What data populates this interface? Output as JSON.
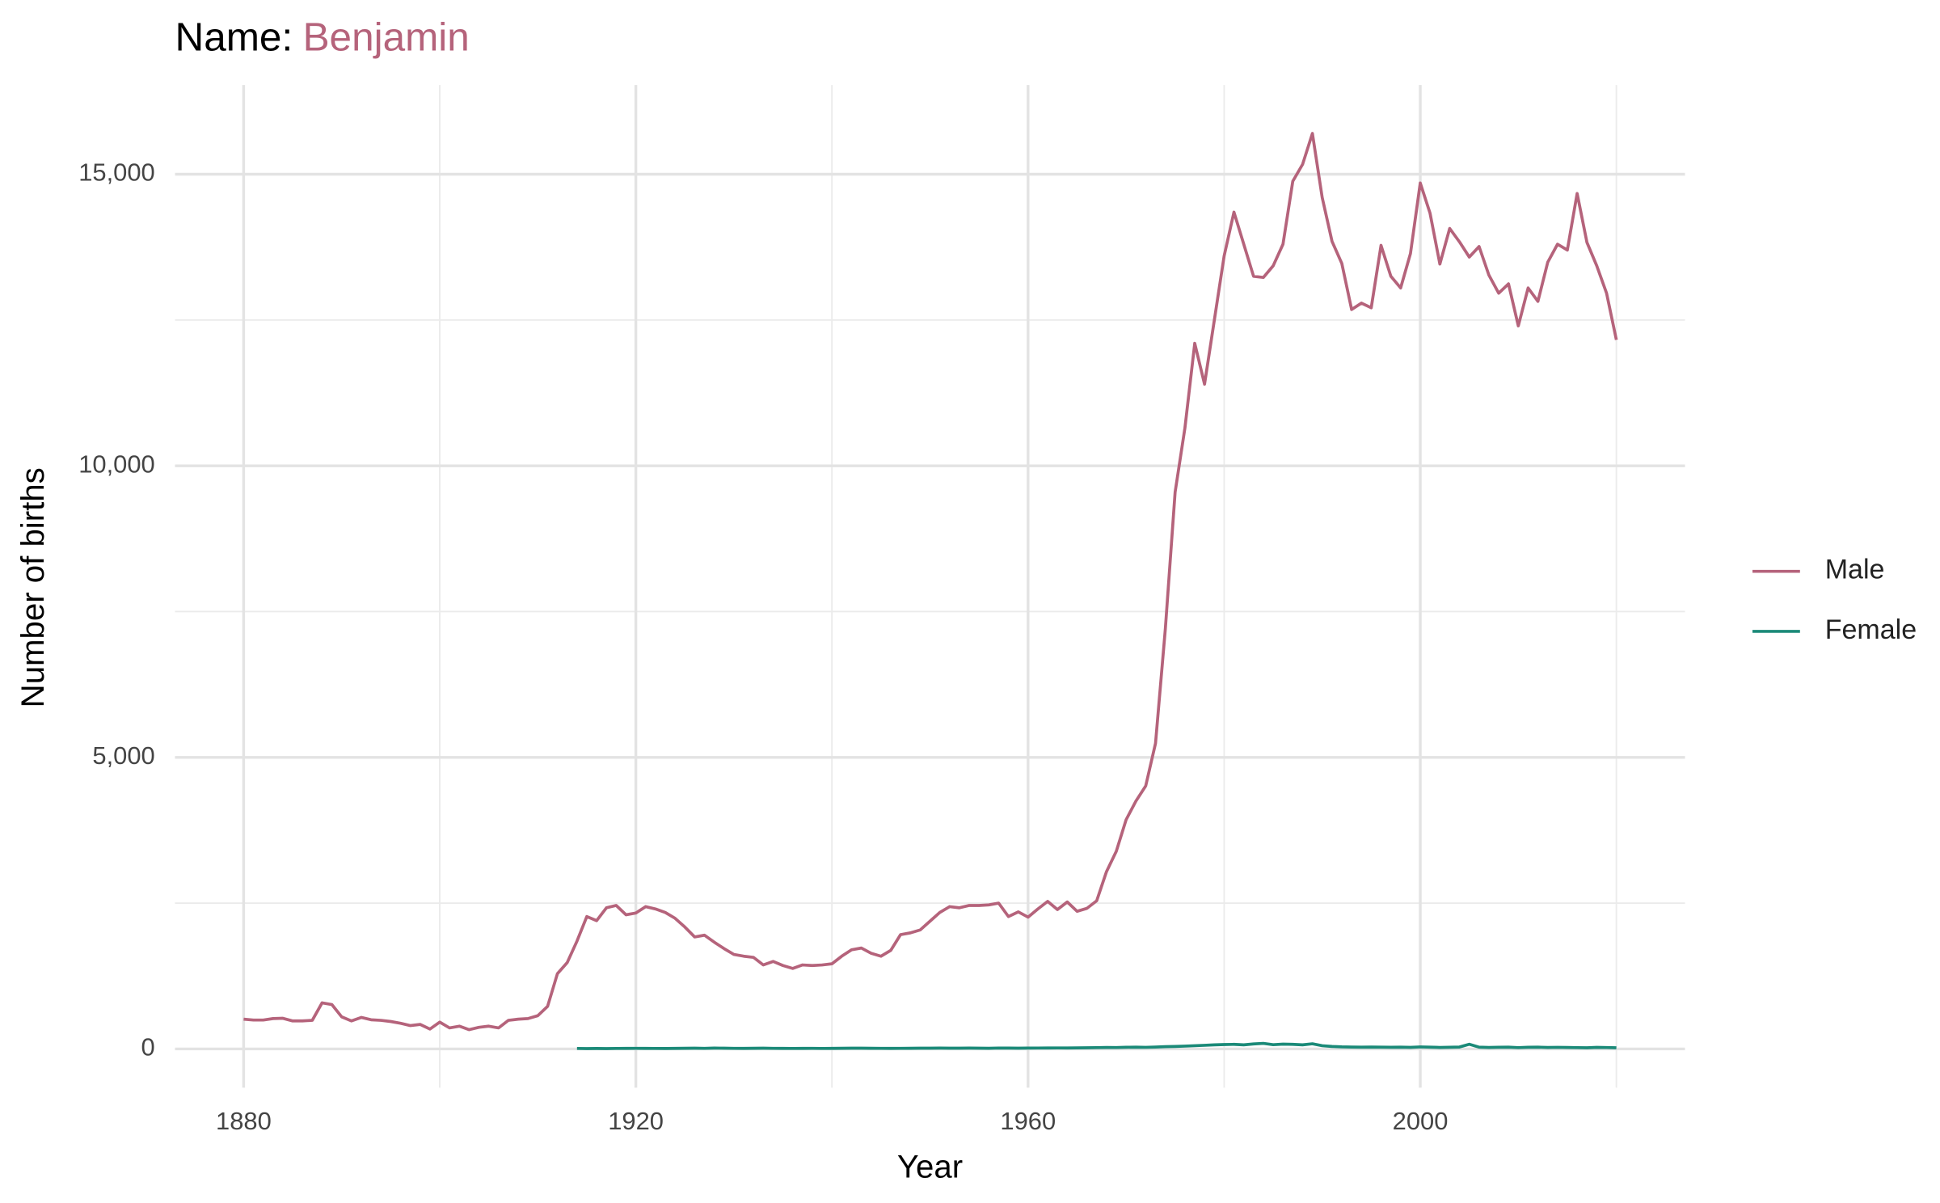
{
  "chart_data": {
    "type": "line",
    "title": "Name:",
    "name": "Benjamin",
    "name_color": "#b5637b",
    "x_label": "Year",
    "y_label": "Number of births",
    "x": [
      1880,
      1881,
      1882,
      1883,
      1884,
      1885,
      1886,
      1887,
      1888,
      1889,
      1890,
      1891,
      1892,
      1893,
      1894,
      1895,
      1896,
      1897,
      1898,
      1899,
      1900,
      1901,
      1902,
      1903,
      1904,
      1905,
      1906,
      1907,
      1908,
      1909,
      1910,
      1911,
      1912,
      1913,
      1914,
      1915,
      1916,
      1917,
      1918,
      1919,
      1920,
      1921,
      1922,
      1923,
      1924,
      1925,
      1926,
      1927,
      1928,
      1929,
      1930,
      1931,
      1932,
      1933,
      1934,
      1935,
      1936,
      1937,
      1938,
      1939,
      1940,
      1941,
      1942,
      1943,
      1944,
      1945,
      1946,
      1947,
      1948,
      1949,
      1950,
      1951,
      1952,
      1953,
      1954,
      1955,
      1956,
      1957,
      1958,
      1959,
      1960,
      1961,
      1962,
      1963,
      1964,
      1965,
      1966,
      1967,
      1968,
      1969,
      1970,
      1971,
      1972,
      1973,
      1974,
      1975,
      1976,
      1977,
      1978,
      1979,
      1980,
      1981,
      1982,
      1983,
      1984,
      1985,
      1986,
      1987,
      1988,
      1989,
      1990,
      1991,
      1992,
      1993,
      1994,
      1995,
      1996,
      1997,
      1998,
      1999,
      2000,
      2001,
      2002,
      2003,
      2004,
      2005,
      2006,
      2007,
      2008,
      2009,
      2010,
      2011,
      2012,
      2013,
      2014,
      2015,
      2016,
      2017,
      2018,
      2019,
      2020
    ],
    "series": [
      {
        "name": "Male",
        "color": "#b5637b",
        "values": [
          510,
          495,
          495,
          520,
          525,
          480,
          480,
          490,
          790,
          760,
          550,
          480,
          540,
          500,
          490,
          470,
          440,
          400,
          420,
          340,
          460,
          360,
          390,
          330,
          370,
          390,
          360,
          490,
          510,
          520,
          570,
          730,
          1290,
          1480,
          1850,
          2270,
          2200,
          2420,
          2460,
          2300,
          2330,
          2440,
          2400,
          2340,
          2240,
          2090,
          1920,
          1950,
          1830,
          1720,
          1620,
          1590,
          1570,
          1440,
          1500,
          1430,
          1380,
          1440,
          1430,
          1440,
          1460,
          1590,
          1700,
          1730,
          1640,
          1590,
          1690,
          1960,
          1990,
          2040,
          2190,
          2340,
          2440,
          2420,
          2460,
          2460,
          2470,
          2500,
          2270,
          2350,
          2260,
          2400,
          2530,
          2390,
          2520,
          2360,
          2410,
          2540,
          3040,
          3390,
          3930,
          4250,
          4510,
          5240,
          7200,
          9550,
          10650,
          12100,
          11400,
          12500,
          13600,
          14350,
          13800,
          13250,
          13230,
          13430,
          13800,
          14880,
          15170,
          15700,
          14600,
          13850,
          13470,
          12680,
          12790,
          12710,
          13780,
          13250,
          13050,
          13640,
          14850,
          14330,
          13460,
          14070,
          13840,
          13580,
          13760,
          13270,
          12960,
          13120,
          12400,
          13050,
          12820,
          13490,
          13800,
          13700,
          14670,
          13830,
          13430,
          12960,
          12160
        ]
      },
      {
        "name": "Female",
        "color": "#1b8a78",
        "values": [
          null,
          null,
          null,
          null,
          null,
          null,
          null,
          null,
          null,
          null,
          null,
          null,
          null,
          null,
          null,
          null,
          null,
          null,
          null,
          null,
          null,
          null,
          null,
          null,
          null,
          null,
          null,
          null,
          null,
          null,
          null,
          null,
          null,
          null,
          8,
          6,
          7,
          6,
          8,
          9,
          10,
          9,
          8,
          7,
          9,
          11,
          12,
          10,
          14,
          13,
          10,
          9,
          11,
          12,
          10,
          9,
          8,
          9,
          10,
          8,
          9,
          11,
          12,
          13,
          11,
          10,
          9,
          10,
          11,
          12,
          13,
          14,
          12,
          13,
          14,
          12,
          11,
          15,
          14,
          13,
          14,
          15,
          16,
          17,
          16,
          18,
          19,
          22,
          25,
          24,
          28,
          30,
          27,
          32,
          38,
          42,
          48,
          55,
          62,
          70,
          75,
          78,
          70,
          85,
          95,
          72,
          82,
          78,
          70,
          88,
          55,
          42,
          35,
          32,
          30,
          32,
          30,
          28,
          30,
          26,
          34,
          30,
          25,
          28,
          32,
          80,
          30,
          25,
          28,
          30,
          22,
          28,
          30,
          25,
          27,
          25,
          22,
          20,
          26,
          24,
          20
        ]
      }
    ],
    "xlim": [
      1873,
      2027
    ],
    "ylim": [
      -665,
      16530
    ],
    "xticks": [
      1880,
      1920,
      1960,
      2000
    ],
    "yticks": [
      0,
      {
        "value": 5000,
        "label": "5,000"
      },
      {
        "value": 10000,
        "label": "10,000"
      },
      {
        "value": 15000,
        "label": "15,000"
      }
    ],
    "x_minor_grid": [
      1900,
      1940,
      1980,
      2020
    ],
    "y_minor_grid": [
      2500,
      7500,
      12500
    ],
    "grid": true,
    "legend": "right"
  }
}
